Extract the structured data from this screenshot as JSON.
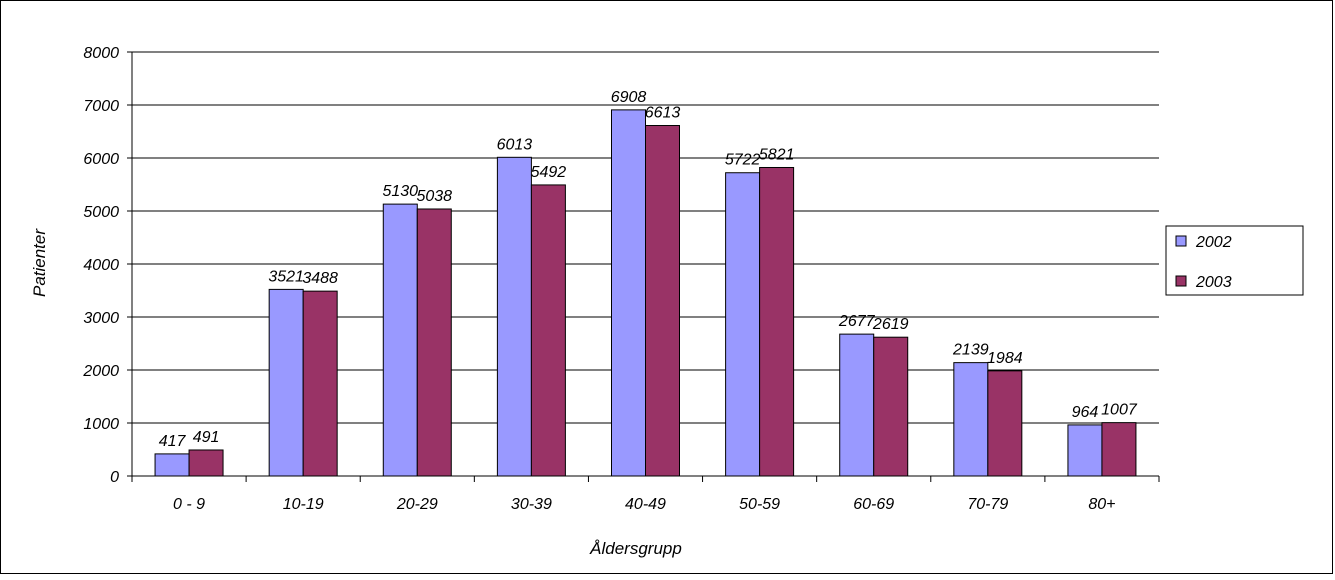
{
  "chart_data": {
    "type": "bar",
    "title": "",
    "xlabel": "Åldersgrupp",
    "ylabel": "Patienter",
    "ylim": [
      0,
      8000
    ],
    "yticks": [
      0,
      1000,
      2000,
      3000,
      4000,
      5000,
      6000,
      7000,
      8000
    ],
    "grid": true,
    "legend_placement": "right",
    "categories": [
      "0 - 9",
      "10-19",
      "20-29",
      "30-39",
      "40-49",
      "50-59",
      "60-69",
      "70-79",
      "80+"
    ],
    "series": [
      {
        "name": "2002",
        "color": "#9999FF",
        "values": [
          417,
          3521,
          5130,
          6013,
          6908,
          5722,
          2677,
          2139,
          964
        ]
      },
      {
        "name": "2003",
        "color": "#993366",
        "values": [
          491,
          3488,
          5038,
          5492,
          6613,
          5821,
          2619,
          1984,
          1007
        ]
      }
    ]
  }
}
